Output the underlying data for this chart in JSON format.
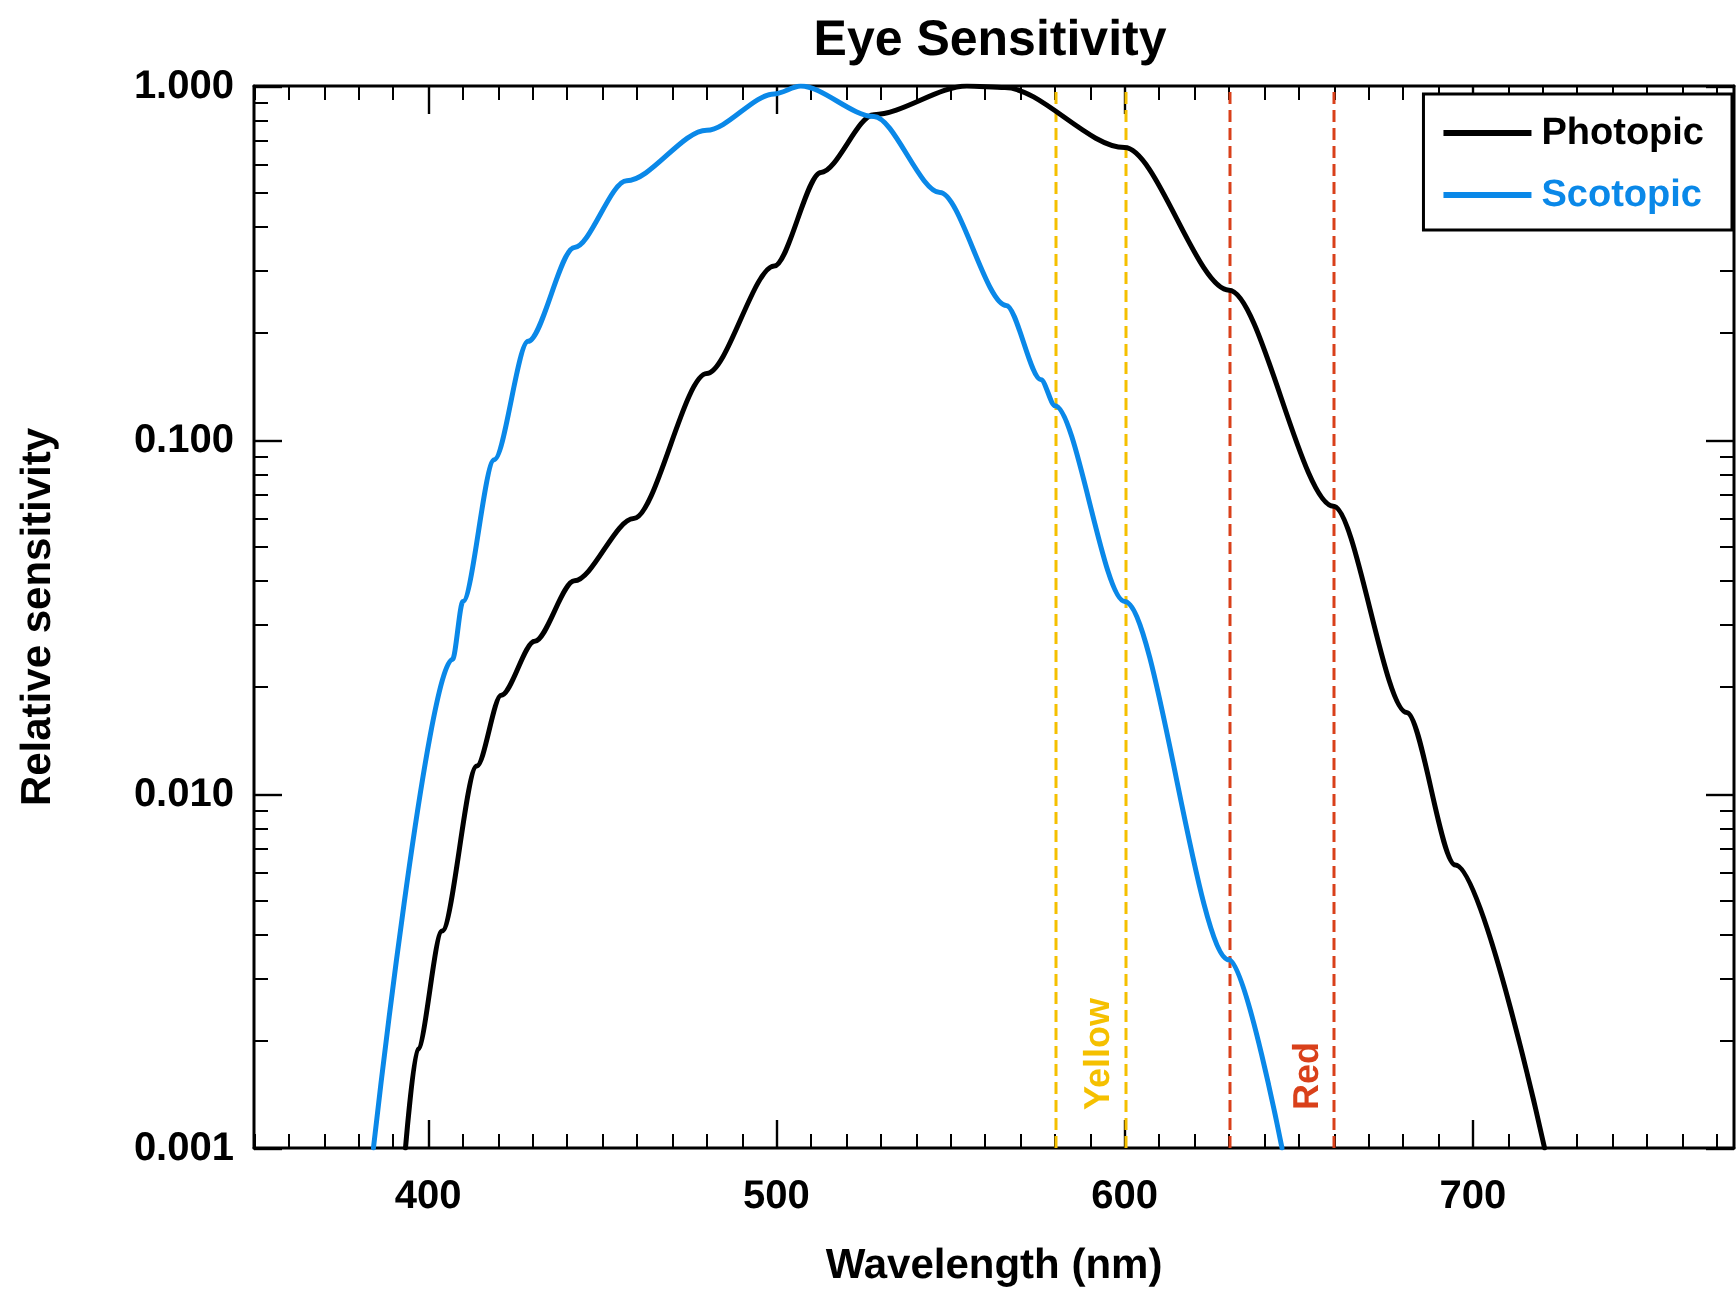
{
  "chart_data": {
    "type": "line",
    "title": "Eye Sensitivity",
    "xlabel": "Wavelength (nm)",
    "ylabel": "Relative sensitivity",
    "xlim": [
      350,
      775
    ],
    "xticks": [
      400,
      500,
      600,
      700
    ],
    "ylim": [
      0.001,
      1
    ],
    "log": "y",
    "yticks": [
      {
        "value": 0.001,
        "label": "0.001"
      },
      {
        "value": 0.01,
        "label": "0.010"
      },
      {
        "value": 0.1,
        "label": "0.100"
      },
      {
        "value": 1,
        "label": "1.000"
      }
    ],
    "grid": false,
    "legend": "top right",
    "marker": "none",
    "line_style": "solid",
    "series": [
      {
        "name": "Photopic",
        "color": "#000000",
        "x": [
          393.5,
          397,
          404,
          414,
          421,
          430.6,
          442,
          459,
          480,
          499.4,
          512.8,
          528,
          554.7,
          565.6,
          600,
          630,
          660,
          681,
          695,
          720.6
        ],
        "values": [
          0.001,
          0.0019,
          0.0041,
          0.012,
          0.019,
          0.027,
          0.04,
          0.06,
          0.154,
          0.31,
          0.57,
          0.83,
          1.0,
          0.99,
          0.67,
          0.265,
          0.065,
          0.017,
          0.0063,
          0.001
        ]
      },
      {
        "name": "Scotopic",
        "color": "#0a88e8",
        "x": [
          384.3,
          407,
          410,
          419,
          428.7,
          442,
          457,
          480,
          499.4,
          507,
          528,
          547,
          566,
          576,
          580,
          600,
          630,
          645.2
        ],
        "values": [
          0.001,
          0.024,
          0.035,
          0.088,
          0.19,
          0.35,
          0.54,
          0.75,
          0.95,
          1.0,
          0.82,
          0.5,
          0.24,
          0.148,
          0.125,
          0.035,
          0.0034,
          0.001
        ]
      }
    ],
    "ref_lines": [
      {
        "axis": "x",
        "value": 580,
        "label": null,
        "color": "#f5c000",
        "line_style": "dashed"
      },
      {
        "axis": "x",
        "value": 600,
        "label": "Yellow",
        "color": "#f5c000",
        "line_style": "dashed"
      },
      {
        "axis": "x",
        "value": 630,
        "label": null,
        "color": "#d9401a",
        "line_style": "dashed"
      },
      {
        "axis": "x",
        "value": 660,
        "label": "Red",
        "color": "#d9401a",
        "line_style": "dashed"
      }
    ]
  }
}
